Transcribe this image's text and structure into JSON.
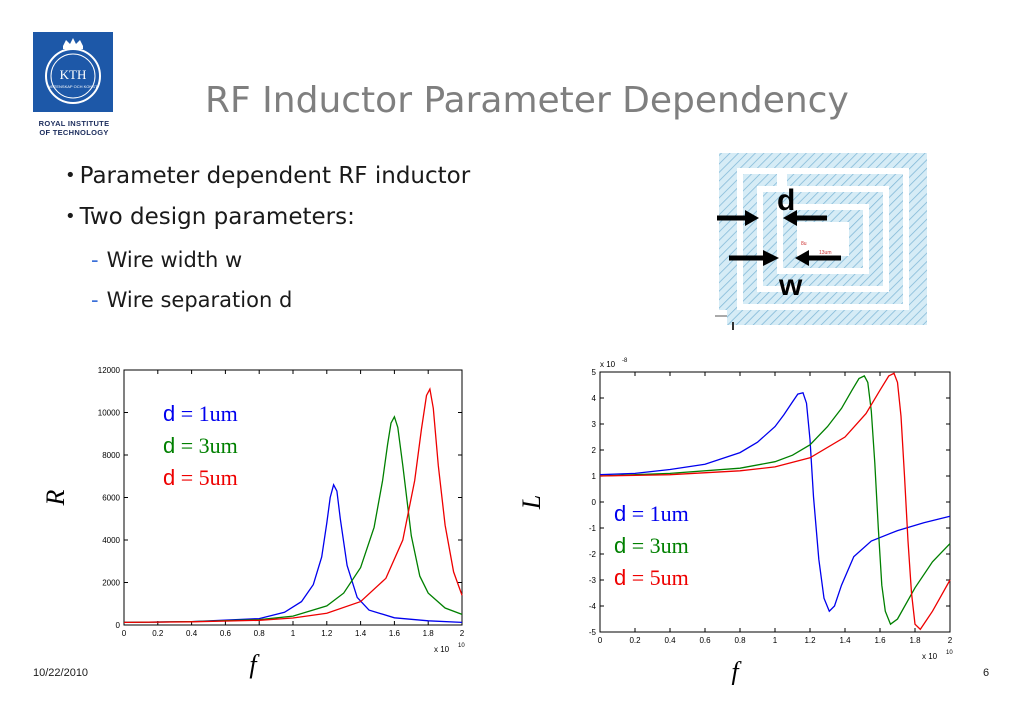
{
  "logo": {
    "text": "KTH",
    "sub": "VETENSKAP OCH KONST",
    "caption_line1": "ROYAL INSTITUTE",
    "caption_line2": "OF TECHNOLOGY"
  },
  "title": "RF Inductor Parameter Dependency",
  "bullets": [
    "Parameter dependent RF inductor",
    "Two design parameters:"
  ],
  "sub_bullets": [
    {
      "dash": "-",
      "text": "Wire width w"
    },
    {
      "dash": "-",
      "text": "Wire separation d"
    }
  ],
  "bullet_marker": "•",
  "layout_labels": {
    "d": "d",
    "w": "w"
  },
  "footer": {
    "date": "10/22/2010",
    "page": "6"
  },
  "legend_left": [
    {
      "sym": "d",
      "rest": " = 1um",
      "color": "#0000ee"
    },
    {
      "sym": "d",
      "rest": " = 3um",
      "color": "#008000"
    },
    {
      "sym": "d",
      "rest": " = 5um",
      "color": "#ee0000"
    }
  ],
  "legend_right": [
    {
      "sym": "d",
      "rest": " = 1um",
      "color": "#0000ee"
    },
    {
      "sym": "d",
      "rest": " = 3um",
      "color": "#008000"
    },
    {
      "sym": "d",
      "rest": " = 5um",
      "color": "#ee0000"
    }
  ],
  "chart_data": [
    {
      "type": "line",
      "xlabel": "f",
      "ylabel": "R",
      "x_multiplier": "x 10",
      "x_multiplier_exp": "10",
      "xlim": [
        0,
        2
      ],
      "ylim": [
        0,
        12000
      ],
      "xticks": [
        "0",
        "0.2",
        "0.4",
        "0.6",
        "0.8",
        "1",
        "1.2",
        "1.4",
        "1.6",
        "1.8",
        "2"
      ],
      "yticks": [
        "0",
        "2000",
        "4000",
        "6000",
        "8000",
        "10000",
        "12000"
      ],
      "series": [
        {
          "name": "d = 1um",
          "color": "#0000ee",
          "x": [
            0,
            0.4,
            0.8,
            0.95,
            1.05,
            1.12,
            1.17,
            1.2,
            1.22,
            1.24,
            1.26,
            1.28,
            1.32,
            1.38,
            1.45,
            1.6,
            1.8,
            2.0
          ],
          "y": [
            120,
            160,
            300,
            600,
            1100,
            1900,
            3200,
            4800,
            6000,
            6600,
            6300,
            5000,
            2800,
            1300,
            700,
            340,
            200,
            120
          ]
        },
        {
          "name": "d = 3um",
          "color": "#008000",
          "x": [
            0,
            0.4,
            0.8,
            1.0,
            1.2,
            1.3,
            1.4,
            1.48,
            1.53,
            1.56,
            1.58,
            1.6,
            1.62,
            1.65,
            1.7,
            1.75,
            1.8,
            1.9,
            2.0
          ],
          "y": [
            120,
            160,
            250,
            420,
            900,
            1500,
            2700,
            4600,
            6800,
            8500,
            9500,
            9800,
            9300,
            7500,
            4200,
            2300,
            1500,
            800,
            500
          ]
        },
        {
          "name": "d = 5um",
          "color": "#ee0000",
          "x": [
            0,
            0.4,
            0.8,
            1.0,
            1.2,
            1.4,
            1.55,
            1.65,
            1.72,
            1.76,
            1.79,
            1.81,
            1.83,
            1.86,
            1.9,
            1.95,
            2.0
          ],
          "y": [
            120,
            150,
            220,
            330,
            550,
            1100,
            2200,
            4000,
            6800,
            9200,
            10800,
            11100,
            10200,
            7500,
            4700,
            2500,
            1400
          ]
        }
      ]
    },
    {
      "type": "line",
      "xlabel": "f",
      "ylabel": "L",
      "y_multiplier": "x 10",
      "y_multiplier_exp": "-8",
      "x_multiplier": "x 10",
      "x_multiplier_exp": "10",
      "xlim": [
        0,
        2
      ],
      "ylim": [
        -5,
        5
      ],
      "xticks": [
        "0",
        "0.2",
        "0.4",
        "0.6",
        "0.8",
        "1",
        "1.2",
        "1.4",
        "1.6",
        "1.8",
        "2"
      ],
      "yticks": [
        "-5",
        "-4",
        "-3",
        "-2",
        "-1",
        "0",
        "1",
        "2",
        "3",
        "4",
        "5"
      ],
      "series": [
        {
          "name": "d = 1um",
          "color": "#0000ee",
          "x": [
            0,
            0.2,
            0.4,
            0.6,
            0.8,
            0.9,
            1.0,
            1.05,
            1.1,
            1.13,
            1.16,
            1.18,
            1.2,
            1.22,
            1.25,
            1.28,
            1.31,
            1.34,
            1.38,
            1.45,
            1.55,
            1.7,
            1.85,
            2.0
          ],
          "y": [
            1.05,
            1.1,
            1.25,
            1.45,
            1.9,
            2.3,
            2.9,
            3.35,
            3.85,
            4.15,
            4.2,
            3.8,
            2.4,
            0.2,
            -2.2,
            -3.7,
            -4.2,
            -4.0,
            -3.2,
            -2.1,
            -1.5,
            -1.1,
            -0.8,
            -0.55
          ]
        },
        {
          "name": "d = 3um",
          "color": "#008000",
          "x": [
            0,
            0.4,
            0.8,
            1.0,
            1.1,
            1.2,
            1.3,
            1.38,
            1.44,
            1.48,
            1.51,
            1.53,
            1.55,
            1.57,
            1.59,
            1.61,
            1.63,
            1.66,
            1.7,
            1.8,
            1.9,
            2.0
          ],
          "y": [
            1.0,
            1.1,
            1.3,
            1.55,
            1.8,
            2.2,
            2.9,
            3.6,
            4.3,
            4.75,
            4.85,
            4.6,
            3.5,
            1.5,
            -1.0,
            -3.2,
            -4.2,
            -4.7,
            -4.5,
            -3.3,
            -2.3,
            -1.6
          ]
        },
        {
          "name": "d = 5um",
          "color": "#ee0000",
          "x": [
            0,
            0.4,
            0.8,
            1.0,
            1.2,
            1.4,
            1.52,
            1.6,
            1.65,
            1.68,
            1.7,
            1.72,
            1.74,
            1.76,
            1.78,
            1.8,
            1.83,
            1.86,
            1.9,
            1.95,
            2.0
          ],
          "y": [
            1.0,
            1.05,
            1.2,
            1.35,
            1.7,
            2.5,
            3.4,
            4.3,
            4.85,
            4.95,
            4.6,
            3.3,
            1.0,
            -1.5,
            -3.5,
            -4.7,
            -4.9,
            -4.6,
            -4.2,
            -3.6,
            -3.0
          ]
        }
      ]
    }
  ]
}
